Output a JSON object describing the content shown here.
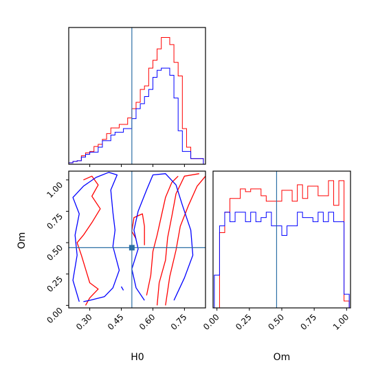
{
  "chart_data": [
    {
      "type": "histogram",
      "panel": "H0-marginal",
      "xlim": [
        0.2,
        0.85
      ],
      "bins": [
        0.2,
        0.22,
        0.24,
        0.26,
        0.28,
        0.3,
        0.32,
        0.34,
        0.36,
        0.38,
        0.4,
        0.42,
        0.44,
        0.46,
        0.48,
        0.5,
        0.52,
        0.54,
        0.56,
        0.58,
        0.6,
        0.62,
        0.64,
        0.66,
        0.68,
        0.7,
        0.72,
        0.74,
        0.76,
        0.78,
        0.8,
        0.82,
        0.84
      ],
      "series": [
        {
          "color": "#ff0000",
          "values": [
            0.2,
            0.4,
            0.5,
            1.2,
            1.6,
            1.8,
            2.5,
            2.8,
            3.5,
            4.3,
            5.1,
            5.1,
            5.6,
            5.6,
            6.5,
            7.8,
            8.7,
            10.5,
            11.0,
            13.5,
            14.6,
            16.2,
            17.8,
            17.8,
            16.8,
            14.3,
            12.4,
            5.0,
            2.4,
            0.8,
            0.8,
            0.8
          ]
        },
        {
          "color": "#0000ff",
          "values": [
            0.2,
            0.4,
            0.5,
            1.0,
            1.4,
            1.7,
            1.7,
            2.4,
            3.3,
            3.3,
            4.1,
            4.5,
            4.5,
            5.0,
            5.0,
            6.4,
            7.8,
            8.5,
            9.5,
            10.5,
            12.2,
            13.2,
            13.5,
            13.5,
            12.5,
            9.3,
            4.7,
            1.8,
            1.8,
            0.8,
            0.8,
            0.8
          ]
        }
      ],
      "truth_line": 0.5
    },
    {
      "type": "contour",
      "panel": "H0-Om-2D",
      "xlabel": "H0",
      "ylabel": "Om",
      "xlim": [
        0.2,
        0.85
      ],
      "ylim": [
        -0.02,
        1.07
      ],
      "xticks": [
        "0.30",
        "0.45",
        "0.60",
        "0.75"
      ],
      "yticks": [
        "0.00",
        "0.25",
        "0.50",
        "0.75",
        "1.00"
      ],
      "truth_point": [
        0.5,
        0.46
      ],
      "series": [
        {
          "color": "#ff0000",
          "contours": [
            [
              [
                0.27,
                1.0
              ],
              [
                0.31,
                1.03
              ],
              [
                0.34,
                0.96
              ],
              [
                0.31,
                0.87
              ],
              [
                0.35,
                0.77
              ],
              [
                0.31,
                0.66
              ],
              [
                0.27,
                0.56
              ],
              [
                0.24,
                0.5
              ],
              [
                0.26,
                0.4
              ],
              [
                0.3,
                0.18
              ],
              [
                0.34,
                0.13
              ],
              [
                0.3,
                0.06
              ],
              [
                0.28,
                0.0
              ]
            ],
            [
              [
                0.62,
                0.0
              ],
              [
                0.63,
                0.18
              ],
              [
                0.66,
                0.36
              ],
              [
                0.67,
                0.54
              ],
              [
                0.69,
                0.71
              ],
              [
                0.71,
                0.89
              ],
              [
                0.75,
                1.03
              ],
              [
                0.82,
                1.05
              ]
            ],
            [
              [
                0.57,
                0.08
              ],
              [
                0.59,
                0.24
              ],
              [
                0.6,
                0.43
              ],
              [
                0.62,
                0.56
              ],
              [
                0.64,
                0.71
              ],
              [
                0.66,
                0.86
              ],
              [
                0.69,
                0.98
              ],
              [
                0.72,
                1.03
              ]
            ],
            [
              [
                0.66,
                0.0
              ],
              [
                0.68,
                0.23
              ],
              [
                0.71,
                0.44
              ],
              [
                0.73,
                0.63
              ],
              [
                0.77,
                0.8
              ],
              [
                0.81,
                0.95
              ],
              [
                0.85,
                1.03
              ]
            ],
            [
              [
                0.52,
                0.53
              ],
              [
                0.5,
                0.59
              ],
              [
                0.51,
                0.7
              ],
              [
                0.55,
                0.73
              ],
              [
                0.56,
                0.63
              ],
              [
                0.56,
                0.48
              ]
            ]
          ]
        },
        {
          "color": "#0000ff",
          "contours": [
            [
              [
                0.25,
                0.03
              ],
              [
                0.22,
                0.2
              ],
              [
                0.24,
                0.4
              ],
              [
                0.23,
                0.56
              ],
              [
                0.25,
                0.73
              ],
              [
                0.22,
                0.86
              ],
              [
                0.27,
                0.95
              ],
              [
                0.33,
                1.02
              ],
              [
                0.39,
                1.06
              ],
              [
                0.43,
                1.04
              ],
              [
                0.4,
                0.92
              ],
              [
                0.41,
                0.74
              ],
              [
                0.42,
                0.6
              ],
              [
                0.41,
                0.47
              ],
              [
                0.44,
                0.28
              ],
              [
                0.41,
                0.14
              ],
              [
                0.37,
                0.07
              ],
              [
                0.3,
                0.04
              ],
              [
                0.27,
                0.03
              ]
            ],
            [
              [
                0.56,
                0.04
              ],
              [
                0.52,
                0.14
              ],
              [
                0.5,
                0.29
              ],
              [
                0.53,
                0.45
              ],
              [
                0.51,
                0.6
              ],
              [
                0.53,
                0.75
              ],
              [
                0.57,
                0.92
              ],
              [
                0.6,
                1.04
              ],
              [
                0.66,
                1.05
              ],
              [
                0.71,
                0.96
              ],
              [
                0.74,
                0.8
              ],
              [
                0.78,
                0.6
              ],
              [
                0.79,
                0.4
              ],
              [
                0.75,
                0.22
              ],
              [
                0.7,
                0.04
              ]
            ],
            [
              [
                0.46,
                0.12
              ],
              [
                0.45,
                0.15
              ]
            ]
          ]
        }
      ]
    },
    {
      "type": "histogram",
      "panel": "Om-marginal",
      "xlabel": "Om",
      "xlim": [
        -0.03,
        1.03
      ],
      "xticks": [
        "0.00",
        "0.25",
        "0.50",
        "0.75",
        "1.00"
      ],
      "bins": [
        -0.02,
        0.02,
        0.06,
        0.1,
        0.14,
        0.18,
        0.22,
        0.26,
        0.3,
        0.34,
        0.38,
        0.42,
        0.46,
        0.5,
        0.54,
        0.58,
        0.62,
        0.66,
        0.7,
        0.74,
        0.78,
        0.82,
        0.86,
        0.9,
        0.94,
        0.98,
        1.02
      ],
      "series": [
        {
          "color": "#ff0000",
          "values": [
            0.0,
            0.55,
            0.7,
            0.8,
            0.8,
            0.87,
            0.85,
            0.87,
            0.87,
            0.82,
            0.78,
            0.78,
            0.78,
            0.86,
            0.86,
            0.78,
            0.9,
            0.8,
            0.89,
            0.89,
            0.82,
            0.82,
            0.93,
            0.75,
            0.93,
            0.05
          ]
        },
        {
          "color": "#0000ff",
          "values": [
            0.24,
            0.6,
            0.7,
            0.63,
            0.7,
            0.7,
            0.63,
            0.7,
            0.63,
            0.66,
            0.7,
            0.6,
            0.6,
            0.53,
            0.6,
            0.6,
            0.7,
            0.66,
            0.66,
            0.63,
            0.7,
            0.63,
            0.7,
            0.63,
            0.63,
            0.1
          ]
        }
      ],
      "truth_line": 0.46
    }
  ]
}
